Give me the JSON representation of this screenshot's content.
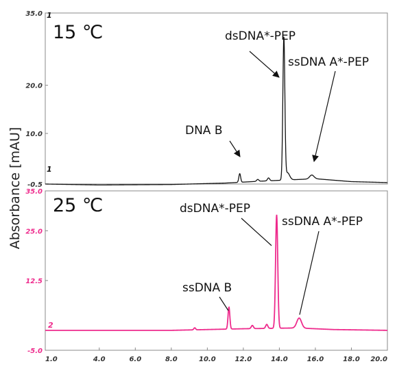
{
  "chart_data": [
    {
      "type": "line",
      "panel_label": "15 ℃",
      "ylabel": "Absorbance [mAU]",
      "ylim": [
        -0.5,
        35.0
      ],
      "ytick_labels": [
        "35.0",
        "20.0",
        "10.0",
        "-0.5"
      ],
      "ytick_values": [
        35.0,
        20.0,
        10.0,
        -0.5
      ],
      "xlim": [
        1.0,
        20.0
      ],
      "trace_marker": "1",
      "top_marker": "1",
      "color": "#111111",
      "trace": {
        "baseline": [
          [
            1.0,
            -0.5
          ],
          [
            4.0,
            -0.7
          ],
          [
            8.0,
            -0.6
          ],
          [
            11.0,
            -0.3
          ],
          [
            13.0,
            0.1
          ],
          [
            16.0,
            0.6
          ],
          [
            18.0,
            0.0
          ],
          [
            20.0,
            -0.2
          ]
        ],
        "peaks": [
          {
            "center": 11.8,
            "height": 1.8,
            "width": 0.05
          },
          {
            "center": 12.8,
            "height": 0.4,
            "width": 0.06
          },
          {
            "center": 13.4,
            "height": 0.6,
            "width": 0.06
          },
          {
            "center": 14.25,
            "height": 29.5,
            "width": 0.055
          },
          {
            "center": 14.45,
            "height": 1.5,
            "width": 0.12
          },
          {
            "center": 15.8,
            "height": 0.8,
            "width": 0.12
          }
        ]
      },
      "annotations": [
        {
          "text": "dsDNA*-PEP",
          "x": 14.2
        },
        {
          "text": "ssDNA A*-PEP",
          "x": 15.8
        },
        {
          "text": "DNA B",
          "x": 11.8
        }
      ]
    },
    {
      "type": "line",
      "panel_label": "25 ℃",
      "ylim": [
        -5.0,
        35.0
      ],
      "ytick_labels": [
        "35.0",
        "25.0",
        "12.5",
        "-5.0"
      ],
      "ytick_values": [
        35.0,
        25.0,
        12.5,
        -5.0
      ],
      "xlim": [
        1.0,
        20.0
      ],
      "xtick_labels": [
        "1.0",
        "4.0",
        "6.0",
        "8.0",
        "10.0",
        "12.0",
        "14.0",
        "16.0",
        "18.0",
        "20.0"
      ],
      "xtick_values": [
        1.0,
        4.0,
        6.0,
        8.0,
        10.0,
        12.0,
        14.0,
        16.0,
        18.0,
        20.0
      ],
      "trace_marker": "2",
      "color": "#ee2a8c",
      "trace": {
        "baseline": [
          [
            1.0,
            0.0
          ],
          [
            8.0,
            0.0
          ],
          [
            12.0,
            0.4
          ],
          [
            15.0,
            0.6
          ],
          [
            17.0,
            0.2
          ],
          [
            20.0,
            0.0
          ]
        ],
        "peaks": [
          {
            "center": 9.3,
            "height": 0.5,
            "width": 0.05
          },
          {
            "center": 11.2,
            "height": 5.5,
            "width": 0.05
          },
          {
            "center": 12.5,
            "height": 0.8,
            "width": 0.06
          },
          {
            "center": 13.3,
            "height": 1.0,
            "width": 0.06
          },
          {
            "center": 13.85,
            "height": 28.5,
            "width": 0.06
          },
          {
            "center": 15.1,
            "height": 2.5,
            "width": 0.13
          }
        ]
      },
      "annotations": [
        {
          "text": "dsDNA*-PEP",
          "x": 13.85
        },
        {
          "text": "ssDNA A*-PEP",
          "x": 15.1
        },
        {
          "text": "ssDNA B",
          "x": 11.2
        }
      ]
    }
  ]
}
